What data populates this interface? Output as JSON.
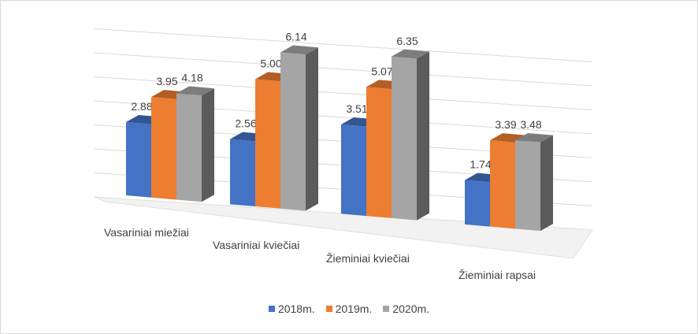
{
  "chart_data": {
    "type": "bar",
    "title": "",
    "categories": [
      "Vasariniai miežiai",
      "Vasariniai kviečiai",
      "Žieminiai kviečiai",
      "Žieminiai rapsai"
    ],
    "series": [
      {
        "name": "2018m.",
        "values": [
          2.88,
          2.56,
          3.51,
          1.74
        ],
        "color": "#4472C4"
      },
      {
        "name": "2019m.",
        "values": [
          3.95,
          5.0,
          5.07,
          3.39
        ],
        "color": "#ED7D31"
      },
      {
        "name": "2020m.",
        "values": [
          4.18,
          6.14,
          6.35,
          3.48
        ],
        "color": "#A5A5A5"
      }
    ],
    "value_labels": [
      [
        "2.88",
        "2.56",
        "3.51",
        "1.74"
      ],
      [
        "3.95",
        "5.00",
        "5.07",
        "3.39"
      ],
      [
        "4.18",
        "6.14",
        "6.35",
        "3.48"
      ]
    ],
    "ylim": [
      0,
      7
    ],
    "grid": true,
    "perspective": "3d",
    "legend_position": "bottom"
  }
}
